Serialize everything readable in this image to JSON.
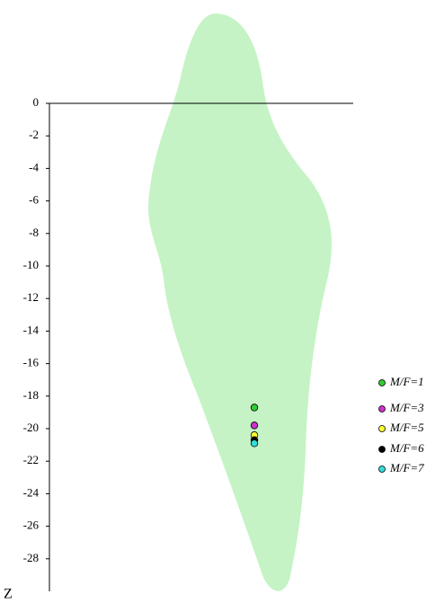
{
  "chart_data": {
    "type": "scatter",
    "axis_label": "Z",
    "ylim": [
      -30,
      0
    ],
    "yticks": [
      0,
      -2,
      -4,
      -6,
      -8,
      -10,
      -12,
      -14,
      -16,
      -18,
      -20,
      -22,
      -24,
      -26,
      -28
    ],
    "series": [
      {
        "name": "M/F=1",
        "color": "#33cc33",
        "values": [
          -18.7
        ]
      },
      {
        "name": "M/F=3",
        "color": "#cc33cc",
        "values": [
          -19.8
        ]
      },
      {
        "name": "M/F=5",
        "color": "#ffff33",
        "values": [
          -20.4
        ]
      },
      {
        "name": "M/F=6",
        "color": "#000000",
        "values": [
          -20.7
        ]
      },
      {
        "name": "M/F=7",
        "color": "#33dddd",
        "values": [
          -20.9
        ]
      }
    ]
  }
}
